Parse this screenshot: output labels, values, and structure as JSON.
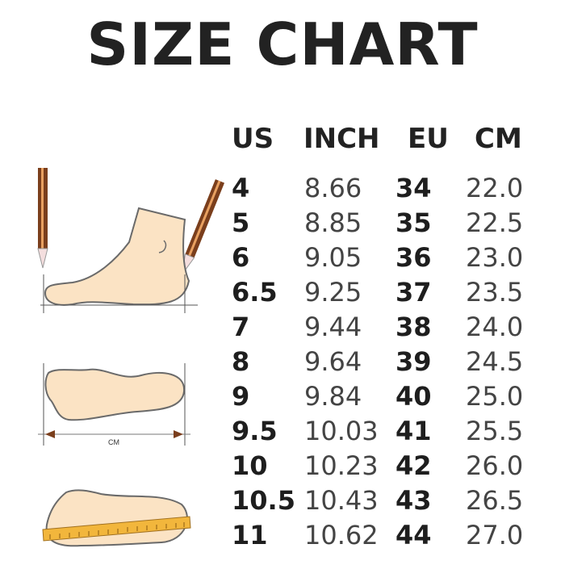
{
  "title": "SIZE CHART",
  "headers": [
    "US",
    "INCH",
    "EU",
    "CM"
  ],
  "rows": [
    [
      "4",
      "8.66",
      "34",
      "22.0"
    ],
    [
      "5",
      "8.85",
      "35",
      "22.5"
    ],
    [
      "6",
      "9.05",
      "36",
      "23.0"
    ],
    [
      "6.5",
      "9.25",
      "37",
      "23.5"
    ],
    [
      "7",
      "9.44",
      "38",
      "24.0"
    ],
    [
      "8",
      "9.64",
      "39",
      "24.5"
    ],
    [
      "9",
      "9.84",
      "40",
      "25.0"
    ],
    [
      "9.5",
      "10.03",
      "41",
      "25.5"
    ],
    [
      "10",
      "10.23",
      "42",
      "26.0"
    ],
    [
      "10.5",
      "10.43",
      "43",
      "26.5"
    ],
    [
      "11",
      "10.62",
      "44",
      "27.0"
    ]
  ],
  "illustration": {
    "measure_label": "CM"
  },
  "colors": {
    "skin": "#fbe3c4",
    "outline": "#6a6a6a",
    "pencil": "#7a3e1c",
    "ruler": "#f2b63c"
  }
}
